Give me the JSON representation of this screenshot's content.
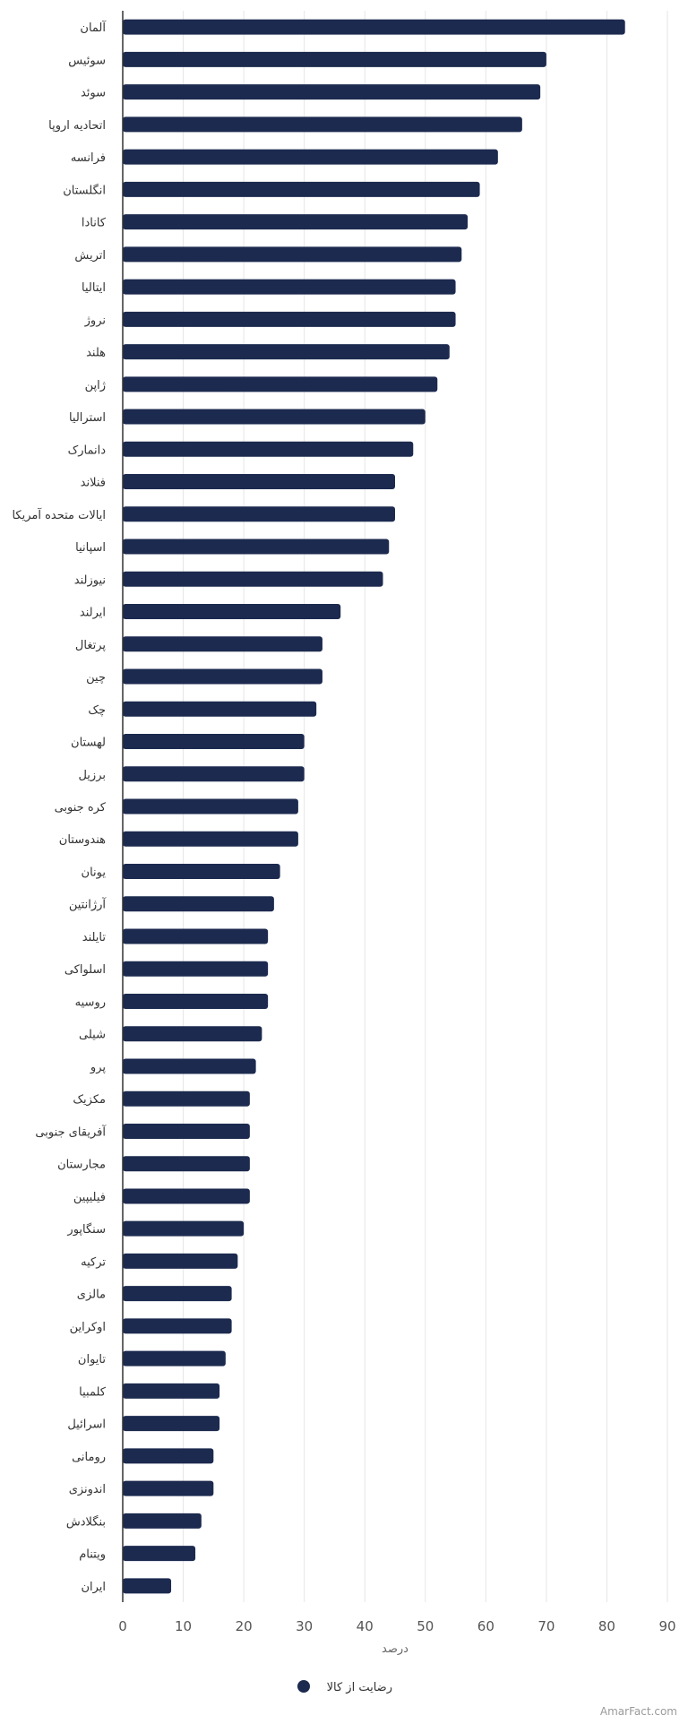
{
  "chart_data": {
    "type": "bar",
    "orientation": "horizontal",
    "categories": [
      "آلمان",
      "سوئیس",
      "سوئد",
      "اتحادیه اروپا",
      "فرانسه",
      "انگلستان",
      "کانادا",
      "اتریش",
      "ایتالیا",
      "نروژ",
      "هلند",
      "ژاپن",
      "استرالیا",
      "دانمارک",
      "فنلاند",
      "ایالات متحده آمریکا",
      "اسپانیا",
      "نیوزلند",
      "ایرلند",
      "پرتغال",
      "چین",
      "چک",
      "لهستان",
      "برزیل",
      "کره جنوبی",
      "هندوستان",
      "یونان",
      "آرژانتین",
      "تایلند",
      "اسلواکی",
      "روسیه",
      "شیلی",
      "پرو",
      "مکزیک",
      "آفریقای جنوبی",
      "مجارستان",
      "فیلیپین",
      "سنگاپور",
      "ترکیه",
      "مالزی",
      "اوکراین",
      "تایوان",
      "کلمبیا",
      "اسرائیل",
      "رومانی",
      "اندونزی",
      "بنگلادش",
      "ویتنام",
      "ایران"
    ],
    "series": [
      {
        "name": "رضایت از کالا",
        "color": "#1c2a4f",
        "values": [
          83,
          70,
          69,
          66,
          62,
          59,
          57,
          56,
          55,
          55,
          54,
          52,
          50,
          48,
          45,
          45,
          44,
          43,
          36,
          33,
          33,
          32,
          30,
          30,
          29,
          29,
          26,
          25,
          24,
          24,
          24,
          23,
          22,
          21,
          21,
          21,
          21,
          20,
          19,
          18,
          18,
          17,
          16,
          16,
          15,
          15,
          13,
          12,
          8
        ]
      }
    ],
    "xlabel": "درصد",
    "xlim": [
      0,
      90
    ],
    "xticks": [
      0,
      10,
      20,
      30,
      40,
      50,
      60,
      70,
      80,
      90
    ],
    "grid": true,
    "legend_position": "bottom"
  },
  "credit": "AmarFact.com",
  "colors": {
    "bar": "#1c2a4f",
    "grid": "#e6e6e6",
    "axis": "#333333"
  }
}
